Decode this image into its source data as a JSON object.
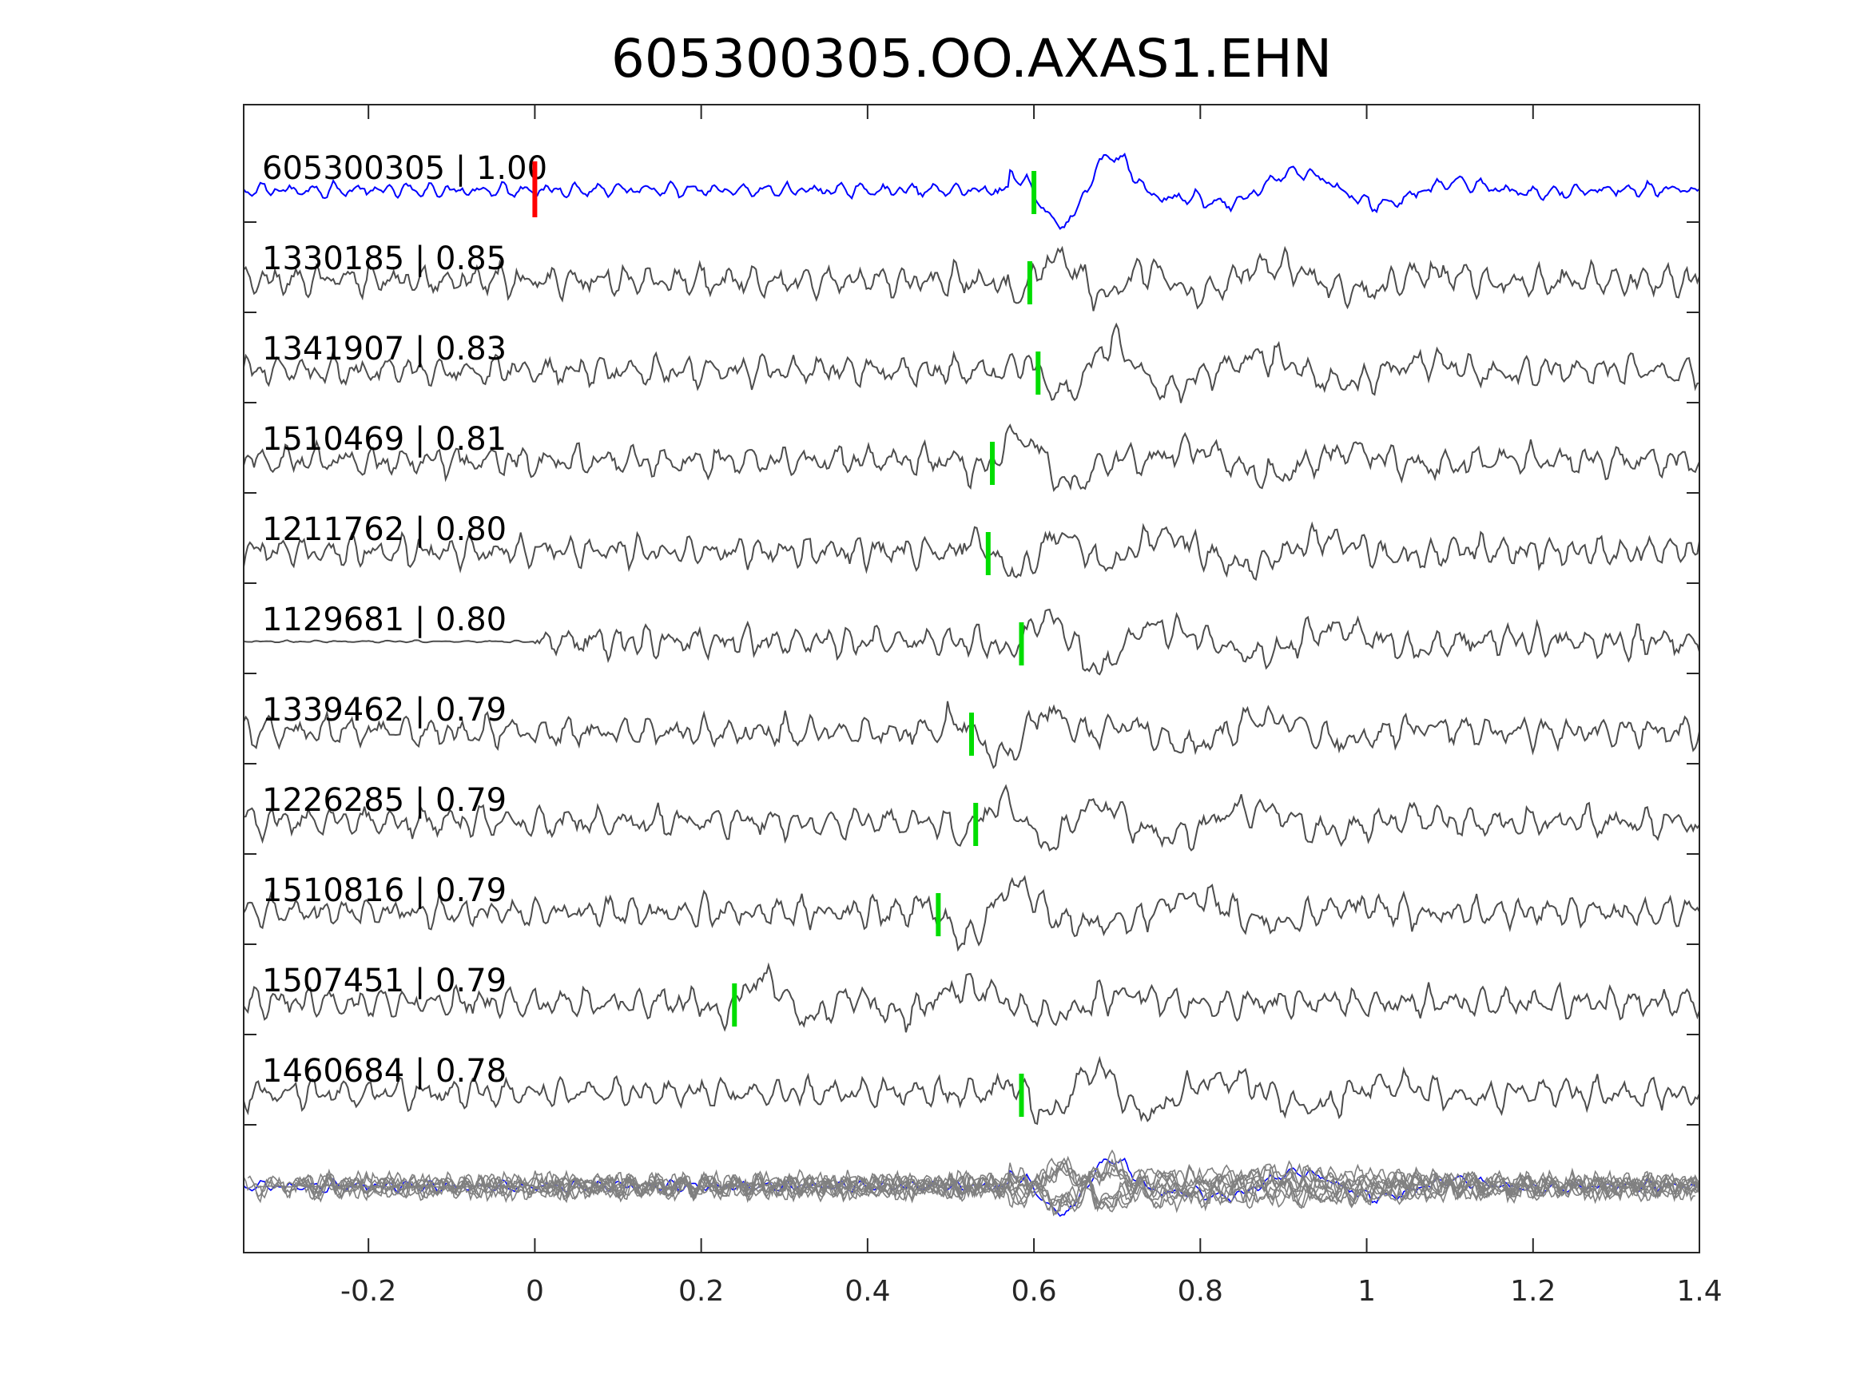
{
  "chart_data": {
    "type": "line",
    "title": "605300305.OO.AXAS1.EHN",
    "xlabel": "",
    "ylabel": "",
    "xlim": [
      -0.35,
      1.4
    ],
    "x_ticks": [
      -0.2,
      0,
      0.2,
      0.4,
      0.6,
      0.8,
      1,
      1.2,
      1.4
    ],
    "x_tick_labels": [
      "-0.2",
      "0",
      "0.2",
      "0.4",
      "0.6",
      "0.8",
      "1",
      "1.2",
      "1.4"
    ],
    "grid": false,
    "legend": "none",
    "colors": {
      "template": "#0000ff",
      "trace": "#4d4d4d",
      "overlay": "#808080",
      "template_pick": "#ff0000",
      "match_pick": "#00dd00"
    },
    "reference_pick_time": 0.0,
    "traces": [
      {
        "id": "605300305",
        "cc": "1.00",
        "label": "605300305 | 1.00",
        "pick_time": 0.6,
        "template": true
      },
      {
        "id": "1330185",
        "cc": "0.85",
        "label": "1330185 | 0.85",
        "pick_time": 0.595
      },
      {
        "id": "1341907",
        "cc": "0.83",
        "label": "1341907 | 0.83",
        "pick_time": 0.605
      },
      {
        "id": "1510469",
        "cc": "0.81",
        "label": "1510469 | 0.81",
        "pick_time": 0.55
      },
      {
        "id": "1211762",
        "cc": "0.80",
        "label": "1211762 | 0.80",
        "pick_time": 0.545
      },
      {
        "id": "1129681",
        "cc": "0.80",
        "label": "1129681 | 0.80",
        "pick_time": 0.585
      },
      {
        "id": "1339462",
        "cc": "0.79",
        "label": "1339462 | 0.79",
        "pick_time": 0.525
      },
      {
        "id": "1226285",
        "cc": "0.79",
        "label": "1226285 | 0.79",
        "pick_time": 0.53
      },
      {
        "id": "1510816",
        "cc": "0.79",
        "label": "1510816 | 0.79",
        "pick_time": 0.485
      },
      {
        "id": "1507451",
        "cc": "0.79",
        "label": "1507451 | 0.79",
        "pick_time": 0.24
      },
      {
        "id": "1460684",
        "cc": "0.78",
        "label": "1460684 | 0.78",
        "pick_time": 0.585
      }
    ]
  }
}
